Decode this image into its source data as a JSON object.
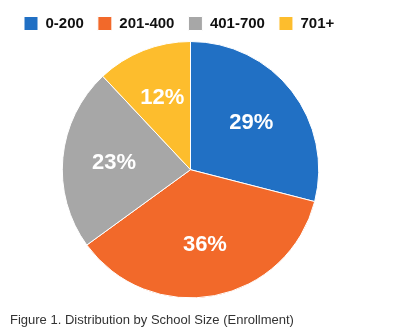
{
  "chart_data": {
    "type": "pie",
    "title": "Figure 1. Distribution by School Size (Enrollment)",
    "categories": [
      "0-200",
      "201-400",
      "401-700",
      "701+"
    ],
    "values": [
      29,
      36,
      23,
      12
    ],
    "value_labels": [
      "29%",
      "36%",
      "23%",
      "12%"
    ],
    "colors": [
      "#2170c4",
      "#f2692a",
      "#a7a7a7",
      "#fdbd2d"
    ],
    "data_labels": true,
    "legend": "top"
  }
}
